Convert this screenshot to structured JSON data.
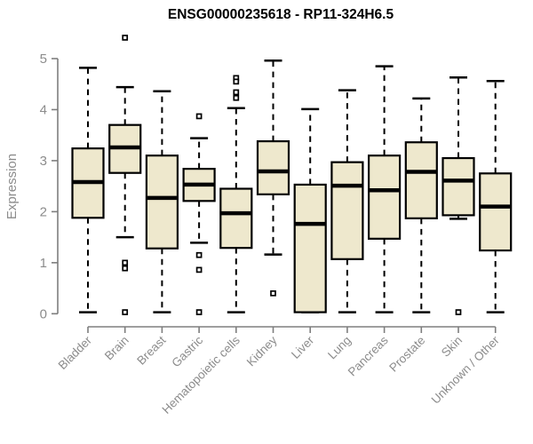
{
  "chart_data": {
    "type": "boxplot",
    "title": "ENSG00000235618 - RP11-324H6.5",
    "xlabel": "",
    "ylabel": "Expression",
    "ylim": [
      0,
      5
    ],
    "yticks": [
      0,
      1,
      2,
      3,
      4,
      5
    ],
    "grid": false,
    "legend": "none",
    "categories": [
      "Bladder",
      "Brain",
      "Breast",
      "Gastric",
      "Hematopoietic cells",
      "Kidney",
      "Liver",
      "Lung",
      "Pancreas",
      "Prostate",
      "Skin",
      "Unknown / Other"
    ],
    "series": [
      {
        "name": "Bladder",
        "whisker_low": 0.03,
        "q1": 1.88,
        "median": 2.58,
        "q3": 3.24,
        "whisker_high": 4.82,
        "outliers": []
      },
      {
        "name": "Brain",
        "whisker_low": 1.5,
        "q1": 2.76,
        "median": 3.26,
        "q3": 3.7,
        "whisker_high": 4.44,
        "outliers": [
          5.41,
          1.0,
          0.89,
          0.03
        ]
      },
      {
        "name": "Breast",
        "whisker_low": 0.03,
        "q1": 1.28,
        "median": 2.27,
        "q3": 3.1,
        "whisker_high": 4.36,
        "outliers": []
      },
      {
        "name": "Gastric",
        "whisker_low": 1.39,
        "q1": 2.21,
        "median": 2.53,
        "q3": 2.84,
        "whisker_high": 3.44,
        "outliers": [
          3.87,
          1.15,
          0.86,
          0.03
        ]
      },
      {
        "name": "Hematopoietic cells",
        "whisker_low": 0.03,
        "q1": 1.29,
        "median": 1.97,
        "q3": 2.45,
        "whisker_high": 4.03,
        "outliers": [
          4.62,
          4.55,
          4.34,
          4.23
        ]
      },
      {
        "name": "Kidney",
        "whisker_low": 1.16,
        "q1": 2.34,
        "median": 2.79,
        "q3": 3.38,
        "whisker_high": 4.96,
        "outliers": [
          0.4
        ]
      },
      {
        "name": "Liver",
        "whisker_low": 0.03,
        "q1": 0.03,
        "median": 1.76,
        "q3": 2.53,
        "whisker_high": 4.01,
        "outliers": []
      },
      {
        "name": "Lung",
        "whisker_low": 0.03,
        "q1": 1.07,
        "median": 2.51,
        "q3": 2.97,
        "whisker_high": 4.38,
        "outliers": []
      },
      {
        "name": "Pancreas",
        "whisker_low": 0.03,
        "q1": 1.47,
        "median": 2.42,
        "q3": 3.1,
        "whisker_high": 4.85,
        "outliers": []
      },
      {
        "name": "Prostate",
        "whisker_low": 0.03,
        "q1": 1.87,
        "median": 2.78,
        "q3": 3.36,
        "whisker_high": 4.22,
        "outliers": []
      },
      {
        "name": "Skin",
        "whisker_low": 1.86,
        "q1": 1.93,
        "median": 2.61,
        "q3": 3.05,
        "whisker_high": 4.63,
        "outliers": [
          0.03
        ]
      },
      {
        "name": "Unknown / Other",
        "whisker_low": 0.03,
        "q1": 1.24,
        "median": 2.1,
        "q3": 2.75,
        "whisker_high": 4.56,
        "outliers": []
      }
    ],
    "colors": {
      "box_fill": "#EEE8CD",
      "box_stroke": "#000000",
      "median": "#000000",
      "whisker": "#000000",
      "outlier_stroke": "#000000",
      "outlier_fill": "#FFFFFF",
      "axis_line": "#7E7E7E",
      "axis_text": "#8C8C8C",
      "title": "#000000",
      "background": "#FFFFFF"
    }
  }
}
